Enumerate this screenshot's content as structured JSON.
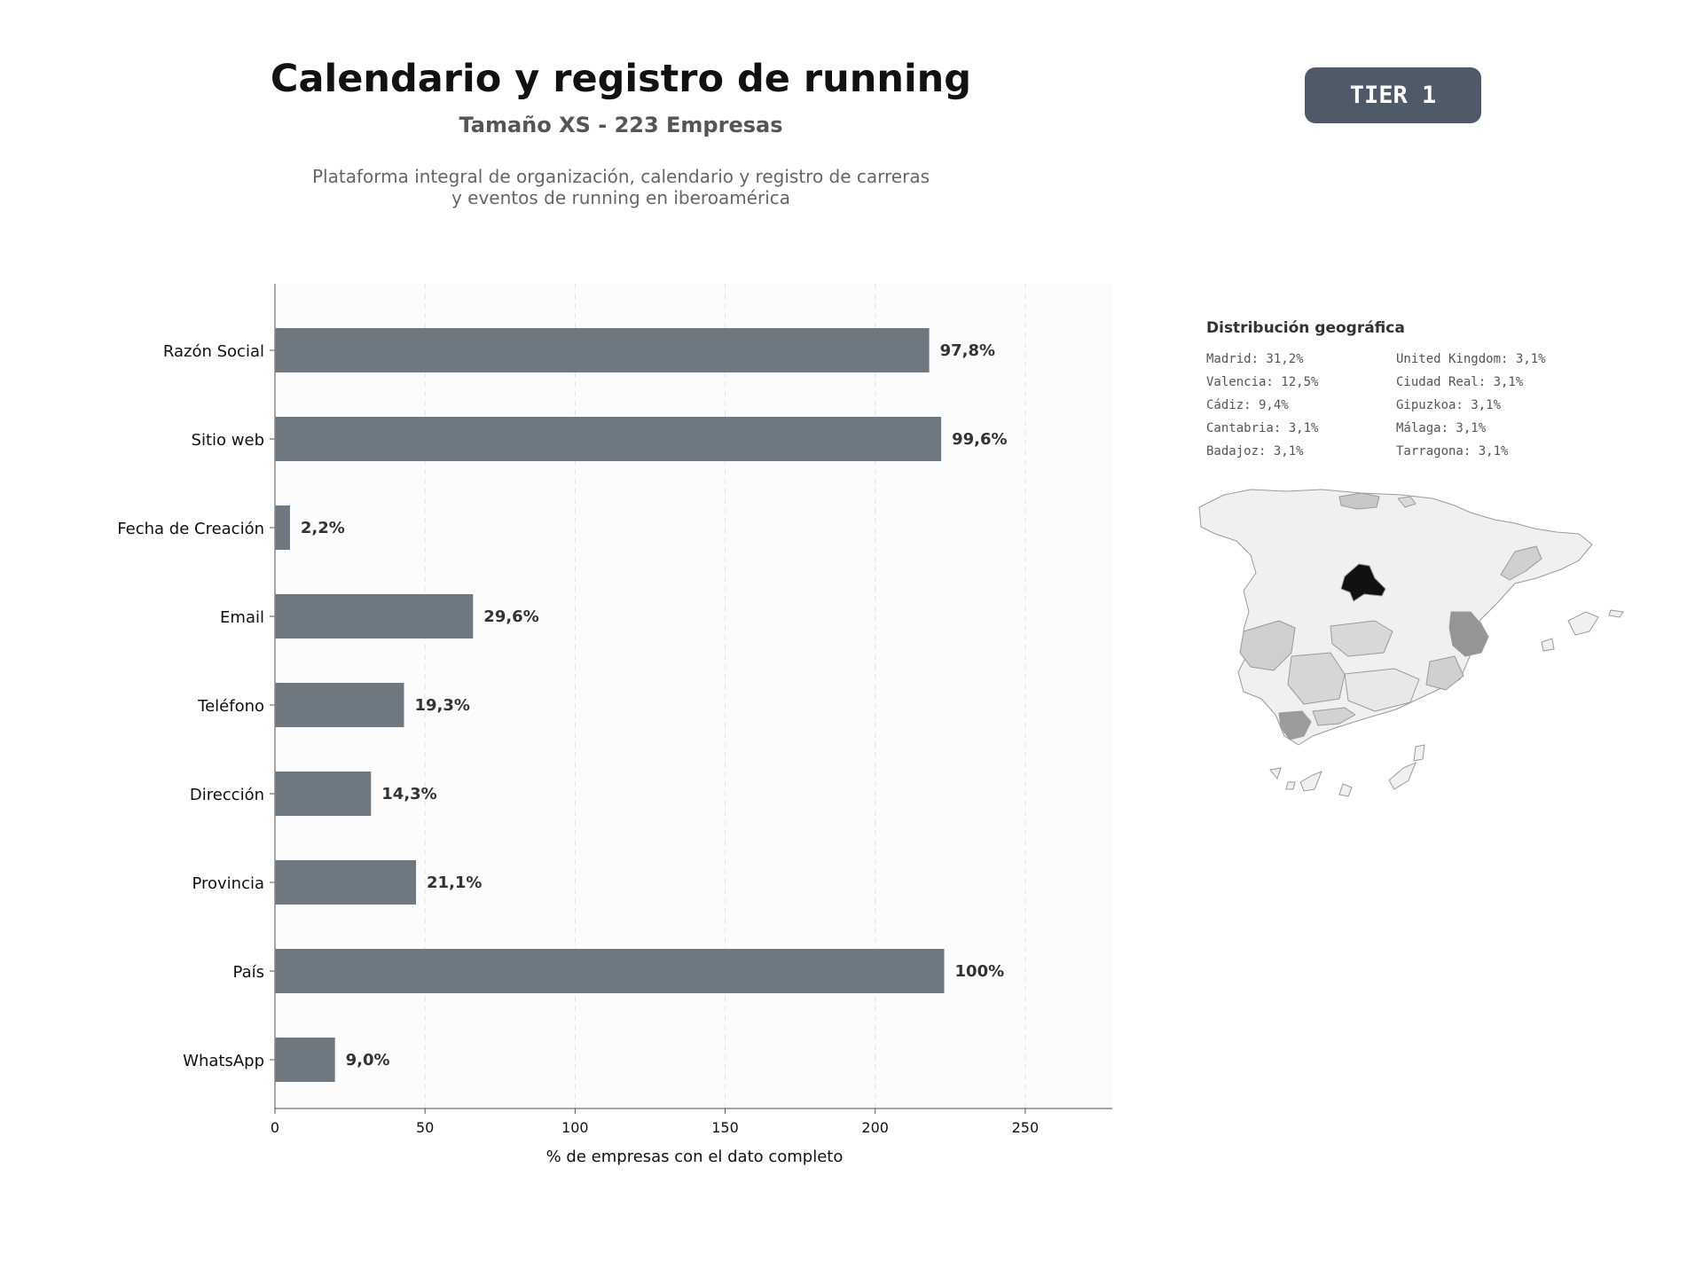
{
  "header": {
    "title": "Calendario y registro de running",
    "subtitle": "Tamaño XS - 223 Empresas",
    "description_line1": "Plataforma integral de organización, calendario y registro de carreras",
    "description_line2": "y eventos de running en iberoamérica"
  },
  "badge": {
    "label": "TIER 1"
  },
  "colors": {
    "bar": "#6d7880",
    "plot_background": "#fcfcfc",
    "badge": "#4e5a67",
    "map_highlight": "#111111"
  },
  "chart_data": {
    "type": "bar",
    "orientation": "horizontal",
    "categories": [
      "Razón Social",
      "Sitio web",
      "Fecha de Creación",
      "Email",
      "Teléfono",
      "Dirección",
      "Provincia",
      "País",
      "WhatsApp"
    ],
    "values": [
      218,
      222,
      5,
      66,
      43,
      32,
      47,
      223,
      20
    ],
    "data_labels": [
      "97,8%",
      "99,6%",
      "2,2%",
      "29,6%",
      "19,3%",
      "14,3%",
      "21,1%",
      "100%",
      "9,0%"
    ],
    "xlabel": "% de empresas con el dato completo",
    "xlim": [
      0,
      279
    ],
    "xticks": [
      0,
      50,
      100,
      150,
      200,
      250
    ],
    "grid": "vertical dashed"
  },
  "geo": {
    "title": "Distribución geográfica",
    "items": [
      "Madrid: 31,2%",
      "United Kingdom: 3,1%",
      "Valencia: 12,5%",
      "Ciudad Real: 3,1%",
      "Cádiz: 9,4%",
      "Gipuzkoa: 3,1%",
      "Cantabria: 3,1%",
      "Málaga: 3,1%",
      "Badajoz: 3,1%",
      "Tarragona: 3,1%"
    ]
  }
}
